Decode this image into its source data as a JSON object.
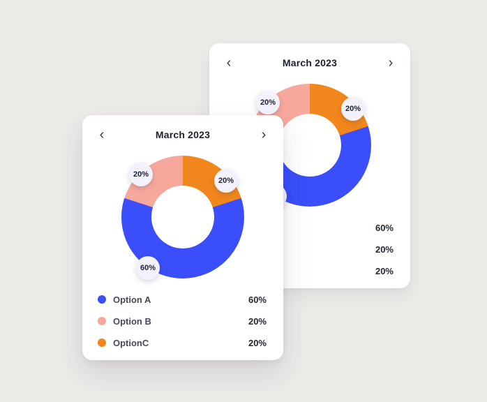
{
  "background_color": "#edebe8",
  "nav": {
    "prev_icon": "‹",
    "next_icon": "›"
  },
  "chart_data": [
    {
      "type": "donut",
      "position": "back-card",
      "title": "March 2023",
      "start_angle_deg": 0,
      "direction": "clockwise",
      "segments": [
        {
          "label": "OptionC",
          "value": 20,
          "color": "#f1871c"
        },
        {
          "label": "Option A",
          "value": 60,
          "color": "#3a4efb"
        },
        {
          "label": "Option B",
          "value": 20,
          "color": "#f6a89d"
        }
      ],
      "badges": [
        {
          "text": "20%",
          "segment": "Option B"
        },
        {
          "text": "20%",
          "segment": "OptionC"
        },
        {
          "text": "60%",
          "segment": "Option A"
        }
      ],
      "legend": [
        {
          "label": "Option A",
          "pct": "60%",
          "color": "#3a4efb"
        },
        {
          "label": "Option B",
          "pct": "20%",
          "color": "#f6a89d"
        },
        {
          "label": "OptionC",
          "pct": "20%",
          "color": "#f1871c"
        }
      ]
    },
    {
      "type": "donut",
      "position": "front-card",
      "title": "March 2023",
      "start_angle_deg": 0,
      "direction": "clockwise",
      "segments": [
        {
          "label": "OptionC",
          "value": 20,
          "color": "#f1871c"
        },
        {
          "label": "Option A",
          "value": 60,
          "color": "#3a4efb"
        },
        {
          "label": "Option B",
          "value": 20,
          "color": "#f6a89d"
        }
      ],
      "badges": [
        {
          "text": "20%",
          "segment": "Option B"
        },
        {
          "text": "20%",
          "segment": "OptionC"
        },
        {
          "text": "60%",
          "segment": "Option A"
        }
      ],
      "legend": [
        {
          "label": "Option A",
          "pct": "60%",
          "color": "#3a4efb"
        },
        {
          "label": "Option B",
          "pct": "20%",
          "color": "#f6a89d"
        },
        {
          "label": "OptionC",
          "pct": "20%",
          "color": "#f1871c"
        }
      ]
    }
  ]
}
